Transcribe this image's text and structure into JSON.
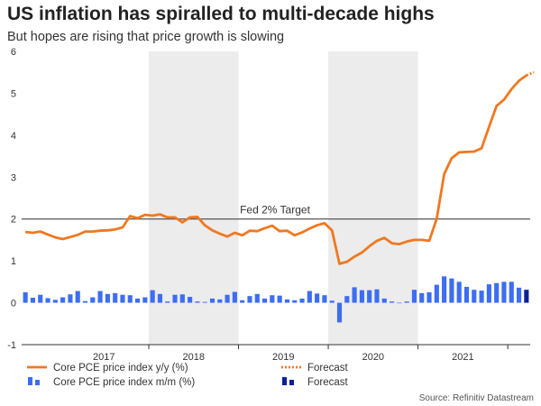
{
  "title": "US inflation has spiralled to multi-decade highs",
  "subtitle": "But hopes are rising that price growth is slowing",
  "source": "Source: Refinitiv Datastream",
  "annotation": "Fed 2% Target",
  "colors": {
    "line": "#f07820",
    "bar": "#3d6df2",
    "bar_forecast": "#0b1f99",
    "target": "#555555",
    "shade": "#ececec"
  },
  "chart_data": {
    "type": "line",
    "title": "US inflation has spiralled to multi-decade highs",
    "subtitle": "But hopes are rising that price growth is slowing",
    "ylim": [
      -1,
      6
    ],
    "yticks": [
      "-1",
      "0",
      "1",
      "2",
      "3",
      "4",
      "5",
      "6"
    ],
    "year_labels": [
      "2017",
      "2018",
      "2019",
      "2020",
      "2021"
    ],
    "shaded_years": [
      "2018",
      "2020"
    ],
    "x_start": "2016-08",
    "target_value": 2,
    "grid": false,
    "legend_position": "bottom",
    "series": [
      {
        "name": "Core PCE price index y/y (%)",
        "kind": "line",
        "values": [
          1.69,
          1.67,
          1.7,
          1.63,
          1.56,
          1.52,
          1.57,
          1.62,
          1.7,
          1.7,
          1.72,
          1.73,
          1.75,
          1.8,
          2.07,
          2.02,
          2.1,
          2.08,
          2.11,
          2.04,
          2.04,
          1.92,
          2.04,
          2.05,
          1.85,
          1.73,
          1.65,
          1.58,
          1.67,
          1.61,
          1.72,
          1.71,
          1.78,
          1.84,
          1.71,
          1.72,
          1.61,
          1.68,
          1.77,
          1.85,
          1.9,
          1.73,
          0.93,
          0.98,
          1.1,
          1.2,
          1.35,
          1.48,
          1.55,
          1.42,
          1.4,
          1.46,
          1.5,
          1.5,
          1.48,
          2.0,
          3.07,
          3.45,
          3.59,
          3.6,
          3.61,
          3.69,
          4.2,
          4.7,
          4.85,
          5.1,
          5.3,
          5.43
        ]
      },
      {
        "name": "Forecast",
        "kind": "line-forecast",
        "values": [
          5.43,
          5.5
        ]
      },
      {
        "name": "Core PCE price index m/m (%)",
        "kind": "bar",
        "values": [
          0.25,
          0.12,
          0.19,
          0.11,
          0.07,
          0.13,
          0.2,
          0.28,
          0.04,
          0.13,
          0.28,
          0.21,
          0.23,
          0.19,
          0.18,
          0.1,
          0.13,
          0.3,
          0.21,
          0.03,
          0.19,
          0.2,
          0.14,
          0.03,
          0.02,
          0.1,
          0.08,
          0.19,
          0.26,
          0.06,
          0.16,
          0.21,
          0.1,
          0.18,
          0.17,
          0.08,
          0.06,
          0.1,
          0.28,
          0.22,
          0.18,
          0.05,
          -0.47,
          0.16,
          0.37,
          0.3,
          0.3,
          0.32,
          0.1,
          0.03,
          0.0,
          0.03,
          0.31,
          0.23,
          0.25,
          0.43,
          0.63,
          0.58,
          0.5,
          0.38,
          0.31,
          0.29,
          0.44,
          0.47,
          0.5,
          0.5,
          0.36
        ]
      },
      {
        "name": "Forecast",
        "kind": "bar-forecast",
        "values": [
          0.31
        ]
      }
    ]
  }
}
